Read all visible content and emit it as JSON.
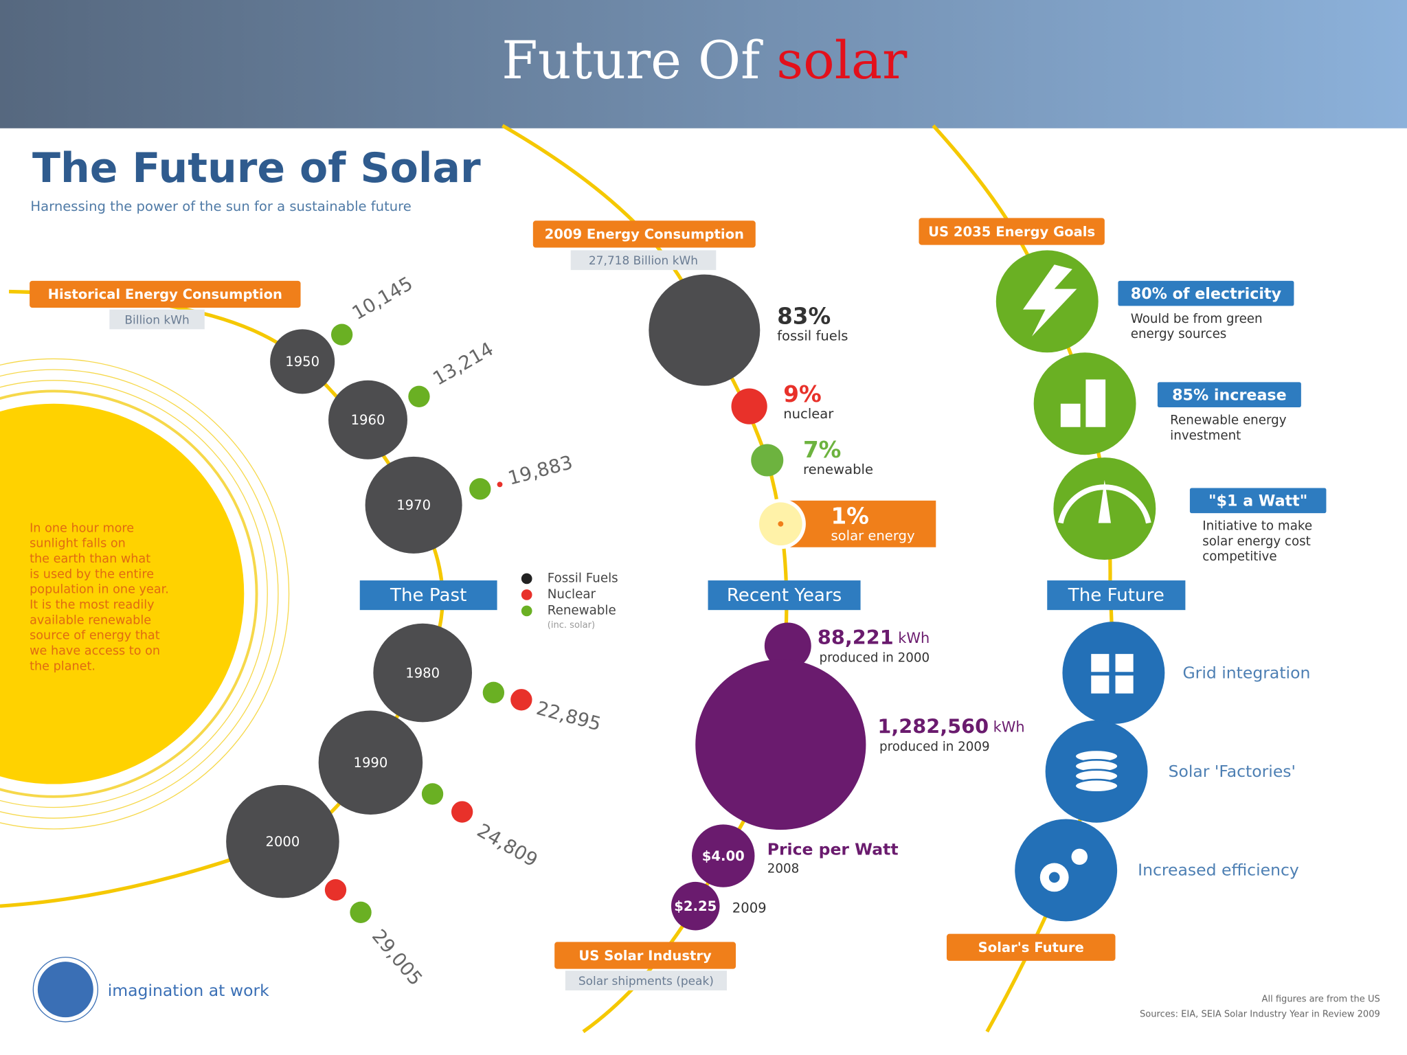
{
  "slide_title": {
    "text": "Future Of ",
    "highlight": "solar"
  },
  "header": {
    "title": "The Future of Solar",
    "subtitle": "Harnessing the power of the sun for a sustainable future"
  },
  "past": {
    "heading": "The Past",
    "label": "Historical Energy Consumption",
    "unit": "Billion kWh",
    "decades": [
      {
        "year": "1950",
        "value": "10,145"
      },
      {
        "year": "1960",
        "value": "13,214"
      },
      {
        "year": "1970",
        "value": "19,883"
      },
      {
        "year": "1980",
        "value": "22,895"
      },
      {
        "year": "1990",
        "value": "24,809"
      },
      {
        "year": "2000",
        "value": "29,005"
      }
    ],
    "sun_text": [
      "In one hour more",
      "sunlight falls on",
      "the earth than what",
      "is used by the entire",
      "population in one year.",
      "It is the most readily",
      "available renewable",
      "source of energy that",
      "we have access to on",
      "the planet."
    ],
    "legend": [
      "Fossil Fuels",
      "Nuclear",
      "Renewable"
    ],
    "legend_note": "(inc. solar)"
  },
  "recent": {
    "heading": "Recent Years",
    "label": "2009 Energy Consumption",
    "total": "27,718 Billion kWh",
    "mix": [
      {
        "share": "83%",
        "source": "fossil fuels"
      },
      {
        "share": "9%",
        "source": "nuclear"
      },
      {
        "share": "7%",
        "source": "renewable"
      },
      {
        "share": "1%",
        "source": "solar energy"
      }
    ],
    "production": [
      {
        "value": "88,221",
        "unit": "kWh",
        "note": "produced in 2000"
      },
      {
        "value": "1,282,560",
        "unit": "kWh",
        "note": "produced in 2009"
      }
    ],
    "price_title": "Price per Watt",
    "prices": [
      {
        "price": "$4.00",
        "year": "2008"
      },
      {
        "price": "$2.25",
        "year": "2009"
      }
    ],
    "industry_label": "US Solar Industry",
    "industry_note": "Solar shipments (peak)"
  },
  "future": {
    "heading": "The Future",
    "label": "US 2035 Energy Goals",
    "goals": [
      {
        "title": "80% of electricity",
        "text": [
          "Would be from green",
          "energy sources"
        ]
      },
      {
        "title": "85% increase",
        "text": [
          "Renewable energy",
          "investment"
        ]
      },
      {
        "title": "\"$1 a Watt\"",
        "text": [
          "Initiative to make",
          "solar energy cost",
          "competitive"
        ]
      }
    ],
    "items": [
      "Grid integration",
      "Solar 'Factories'",
      "Increased efficiency"
    ],
    "footer_label": "Solar's Future"
  },
  "footer": {
    "brand": "imagination at work",
    "note": "All figures are from the US",
    "sources": "Sources: EIA, SEIA Solar Industry Year in Review 2009"
  }
}
